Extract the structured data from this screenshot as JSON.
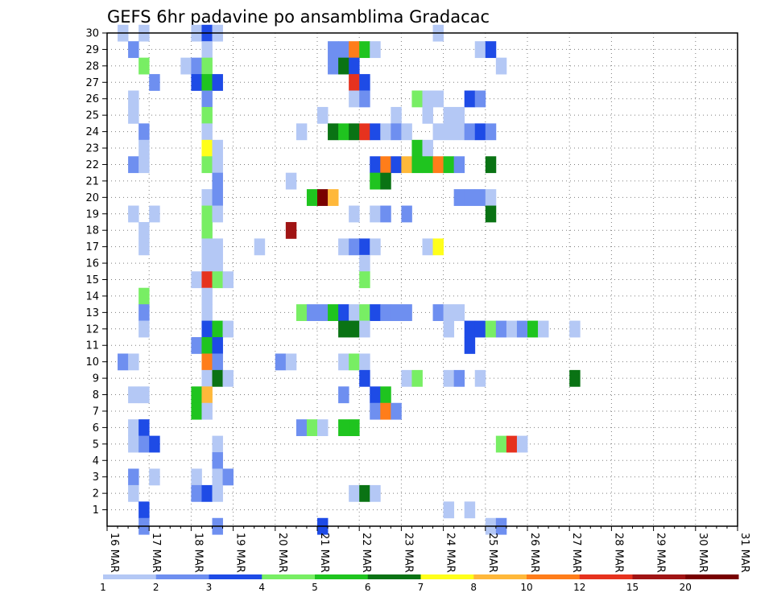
{
  "chart_data": {
    "type": "heatmap",
    "title": "GEFS 6hr padavine po ansamblima Gradacac",
    "ylim": [
      0,
      30
    ],
    "y_ticks": [
      1,
      2,
      3,
      4,
      5,
      6,
      7,
      8,
      9,
      10,
      11,
      12,
      13,
      14,
      15,
      16,
      17,
      18,
      19,
      20,
      21,
      22,
      23,
      24,
      25,
      26,
      27,
      28,
      29,
      30
    ],
    "x_ticks": [
      "16 MAR",
      "17 MAR",
      "18 MAR",
      "19 MAR",
      "20 MAR",
      "21 MAR",
      "22 MAR",
      "23 MAR",
      "24 MAR",
      "25 MAR",
      "26 MAR",
      "27 MAR",
      "28 MAR",
      "29 MAR",
      "30 MAR",
      "31 MAR"
    ],
    "grid": true,
    "legend_position": "bottom",
    "color_scale": {
      "colors": [
        "#b4c8f5",
        "#6e8ff0",
        "#1e4be6",
        "#78ee64",
        "#1fc41f",
        "#0a7314",
        "#ffff1a",
        "#ffb83a",
        "#ff7d1a",
        "#e6321e",
        "#a01414",
        "#780000"
      ],
      "labels": [
        "1",
        "2",
        "3",
        "4",
        "5",
        "6",
        "7",
        "8",
        "10",
        "12",
        "15",
        "20"
      ]
    },
    "cell_note": "cells: [time_step_index (6h steps from 16 MAR 00Z), member, color_class 0-11]",
    "cells": [
      [
        1,
        30,
        0
      ],
      [
        3,
        30,
        0
      ],
      [
        8,
        30,
        0
      ],
      [
        9,
        30,
        2
      ],
      [
        10,
        30,
        0
      ],
      [
        31,
        30,
        0
      ],
      [
        2,
        29,
        1
      ],
      [
        9,
        29,
        0
      ],
      [
        21,
        29,
        1
      ],
      [
        22,
        29,
        1
      ],
      [
        23,
        29,
        8
      ],
      [
        24,
        29,
        4
      ],
      [
        25,
        29,
        0
      ],
      [
        35,
        29,
        0
      ],
      [
        36,
        29,
        2
      ],
      [
        3,
        28,
        3
      ],
      [
        7,
        28,
        0
      ],
      [
        8,
        28,
        1
      ],
      [
        9,
        28,
        3
      ],
      [
        21,
        28,
        1
      ],
      [
        22,
        28,
        5
      ],
      [
        23,
        28,
        2
      ],
      [
        37,
        28,
        0
      ],
      [
        4,
        27,
        1
      ],
      [
        8,
        27,
        2
      ],
      [
        9,
        27,
        4
      ],
      [
        10,
        27,
        2
      ],
      [
        23,
        27,
        9
      ],
      [
        24,
        27,
        2
      ],
      [
        2,
        26,
        0
      ],
      [
        9,
        26,
        1
      ],
      [
        23,
        26,
        0
      ],
      [
        24,
        26,
        1
      ],
      [
        29,
        26,
        3
      ],
      [
        30,
        26,
        0
      ],
      [
        31,
        26,
        0
      ],
      [
        34,
        26,
        2
      ],
      [
        35,
        26,
        1
      ],
      [
        2,
        25,
        0
      ],
      [
        9,
        25,
        3
      ],
      [
        20,
        25,
        0
      ],
      [
        27,
        25,
        0
      ],
      [
        30,
        25,
        0
      ],
      [
        32,
        25,
        0
      ],
      [
        33,
        25,
        0
      ],
      [
        3,
        24,
        1
      ],
      [
        9,
        24,
        0
      ],
      [
        18,
        24,
        0
      ],
      [
        21,
        24,
        5
      ],
      [
        22,
        24,
        4
      ],
      [
        23,
        24,
        5
      ],
      [
        24,
        24,
        9
      ],
      [
        25,
        24,
        2
      ],
      [
        26,
        24,
        0
      ],
      [
        27,
        24,
        1
      ],
      [
        28,
        24,
        0
      ],
      [
        31,
        24,
        0
      ],
      [
        32,
        24,
        0
      ],
      [
        33,
        24,
        0
      ],
      [
        34,
        24,
        1
      ],
      [
        35,
        24,
        2
      ],
      [
        36,
        24,
        1
      ],
      [
        3,
        23,
        0
      ],
      [
        9,
        23,
        6
      ],
      [
        10,
        23,
        0
      ],
      [
        29,
        23,
        4
      ],
      [
        30,
        23,
        0
      ],
      [
        2,
        22,
        1
      ],
      [
        3,
        22,
        0
      ],
      [
        9,
        22,
        3
      ],
      [
        10,
        22,
        0
      ],
      [
        25,
        22,
        2
      ],
      [
        26,
        22,
        8
      ],
      [
        27,
        22,
        2
      ],
      [
        28,
        22,
        7
      ],
      [
        29,
        22,
        4
      ],
      [
        30,
        22,
        4
      ],
      [
        31,
        22,
        8
      ],
      [
        32,
        22,
        4
      ],
      [
        33,
        22,
        1
      ],
      [
        36,
        22,
        5
      ],
      [
        10,
        21,
        1
      ],
      [
        17,
        21,
        0
      ],
      [
        25,
        21,
        4
      ],
      [
        26,
        21,
        5
      ],
      [
        9,
        20,
        0
      ],
      [
        10,
        20,
        1
      ],
      [
        19,
        20,
        4
      ],
      [
        20,
        20,
        11
      ],
      [
        21,
        20,
        7
      ],
      [
        33,
        20,
        1
      ],
      [
        34,
        20,
        1
      ],
      [
        35,
        20,
        1
      ],
      [
        36,
        20,
        0
      ],
      [
        2,
        19,
        0
      ],
      [
        4,
        19,
        0
      ],
      [
        9,
        19,
        3
      ],
      [
        10,
        19,
        0
      ],
      [
        23,
        19,
        0
      ],
      [
        25,
        19,
        0
      ],
      [
        26,
        19,
        1
      ],
      [
        28,
        19,
        1
      ],
      [
        36,
        19,
        5
      ],
      [
        3,
        18,
        0
      ],
      [
        9,
        18,
        3
      ],
      [
        17,
        18,
        10
      ],
      [
        3,
        17,
        0
      ],
      [
        9,
        17,
        0
      ],
      [
        10,
        17,
        0
      ],
      [
        14,
        17,
        0
      ],
      [
        22,
        17,
        0
      ],
      [
        23,
        17,
        1
      ],
      [
        24,
        17,
        2
      ],
      [
        25,
        17,
        0
      ],
      [
        30,
        17,
        0
      ],
      [
        31,
        17,
        6
      ],
      [
        9,
        16,
        0
      ],
      [
        10,
        16,
        0
      ],
      [
        24,
        16,
        0
      ],
      [
        8,
        15,
        0
      ],
      [
        9,
        15,
        9
      ],
      [
        10,
        15,
        3
      ],
      [
        11,
        15,
        0
      ],
      [
        24,
        15,
        3
      ],
      [
        3,
        14,
        3
      ],
      [
        9,
        14,
        0
      ],
      [
        3,
        13,
        1
      ],
      [
        9,
        13,
        0
      ],
      [
        18,
        13,
        3
      ],
      [
        19,
        13,
        1
      ],
      [
        20,
        13,
        1
      ],
      [
        21,
        13,
        4
      ],
      [
        22,
        13,
        2
      ],
      [
        23,
        13,
        0
      ],
      [
        24,
        13,
        3
      ],
      [
        25,
        13,
        2
      ],
      [
        26,
        13,
        1
      ],
      [
        27,
        13,
        1
      ],
      [
        28,
        13,
        1
      ],
      [
        31,
        13,
        1
      ],
      [
        32,
        13,
        0
      ],
      [
        33,
        13,
        0
      ],
      [
        3,
        12,
        0
      ],
      [
        9,
        12,
        2
      ],
      [
        10,
        12,
        4
      ],
      [
        11,
        12,
        0
      ],
      [
        22,
        12,
        5
      ],
      [
        23,
        12,
        5
      ],
      [
        24,
        12,
        0
      ],
      [
        32,
        12,
        0
      ],
      [
        34,
        12,
        2
      ],
      [
        35,
        12,
        2
      ],
      [
        36,
        12,
        3
      ],
      [
        37,
        12,
        1
      ],
      [
        38,
        12,
        0
      ],
      [
        39,
        12,
        1
      ],
      [
        40,
        12,
        4
      ],
      [
        41,
        12,
        0
      ],
      [
        44,
        12,
        0
      ],
      [
        8,
        11,
        1
      ],
      [
        9,
        11,
        4
      ],
      [
        10,
        11,
        2
      ],
      [
        34,
        11,
        2
      ],
      [
        1,
        10,
        1
      ],
      [
        2,
        10,
        0
      ],
      [
        9,
        10,
        8
      ],
      [
        10,
        10,
        1
      ],
      [
        16,
        10,
        1
      ],
      [
        17,
        10,
        0
      ],
      [
        22,
        10,
        0
      ],
      [
        23,
        10,
        3
      ],
      [
        24,
        10,
        0
      ],
      [
        9,
        9,
        0
      ],
      [
        10,
        9,
        5
      ],
      [
        11,
        9,
        0
      ],
      [
        24,
        9,
        2
      ],
      [
        28,
        9,
        0
      ],
      [
        29,
        9,
        3
      ],
      [
        32,
        9,
        0
      ],
      [
        33,
        9,
        1
      ],
      [
        35,
        9,
        0
      ],
      [
        44,
        9,
        5
      ],
      [
        2,
        8,
        0
      ],
      [
        3,
        8,
        0
      ],
      [
        8,
        8,
        4
      ],
      [
        9,
        8,
        7
      ],
      [
        22,
        8,
        1
      ],
      [
        25,
        8,
        2
      ],
      [
        26,
        8,
        4
      ],
      [
        8,
        7,
        4
      ],
      [
        9,
        7,
        0
      ],
      [
        25,
        7,
        1
      ],
      [
        26,
        7,
        8
      ],
      [
        27,
        7,
        1
      ],
      [
        2,
        6,
        0
      ],
      [
        3,
        6,
        2
      ],
      [
        18,
        6,
        1
      ],
      [
        19,
        6,
        3
      ],
      [
        20,
        6,
        0
      ],
      [
        22,
        6,
        4
      ],
      [
        23,
        6,
        4
      ],
      [
        2,
        5,
        0
      ],
      [
        3,
        5,
        1
      ],
      [
        4,
        5,
        2
      ],
      [
        10,
        5,
        0
      ],
      [
        37,
        5,
        3
      ],
      [
        38,
        5,
        9
      ],
      [
        39,
        5,
        0
      ],
      [
        10,
        4,
        1
      ],
      [
        2,
        3,
        1
      ],
      [
        4,
        3,
        0
      ],
      [
        8,
        3,
        0
      ],
      [
        10,
        3,
        0
      ],
      [
        11,
        3,
        1
      ],
      [
        2,
        2,
        0
      ],
      [
        8,
        2,
        1
      ],
      [
        9,
        2,
        2
      ],
      [
        10,
        2,
        0
      ],
      [
        23,
        2,
        0
      ],
      [
        24,
        2,
        5
      ],
      [
        25,
        2,
        0
      ],
      [
        3,
        1,
        2
      ],
      [
        32,
        1,
        0
      ],
      [
        34,
        1,
        0
      ],
      [
        3,
        0,
        1
      ],
      [
        10,
        0,
        1
      ],
      [
        20,
        0,
        2
      ],
      [
        36,
        0,
        0
      ],
      [
        37,
        0,
        1
      ]
    ]
  }
}
